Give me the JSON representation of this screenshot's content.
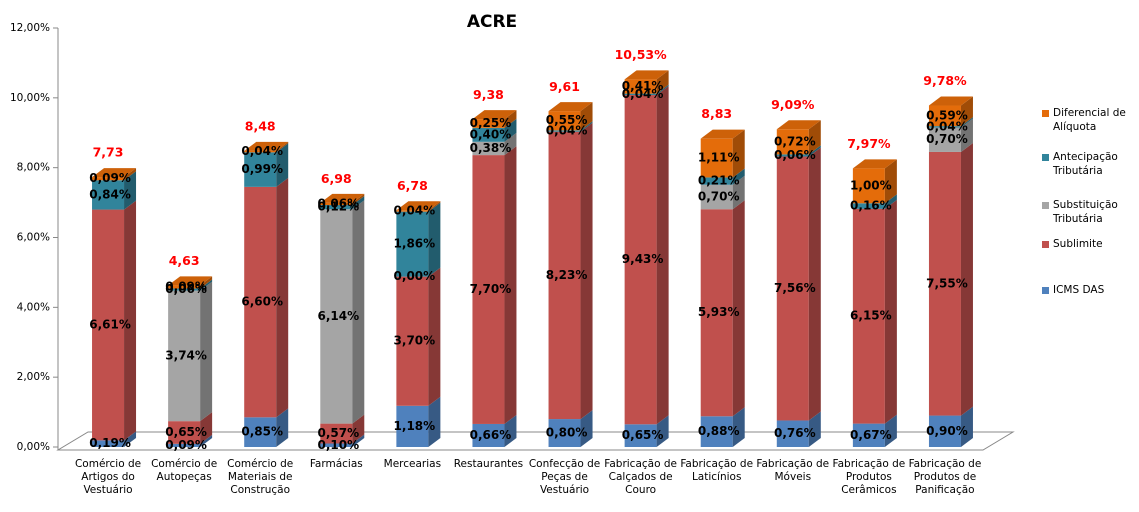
{
  "chart_data": {
    "type": "bar3d_stacked",
    "title": "ACRE",
    "categories": [
      "Comércio de\nArtigos do\nVestuário",
      "Comércio de\nAutopeças",
      "Comércio de\nMateriais de\nConstrução",
      "Farmácias",
      "Mercearias",
      "Restaurantes",
      "Confecção de\nPeças de\nVestuário",
      "Fabricação de\nCalçados de\nCouro",
      "Fabricação de\nLaticínios",
      "Fabricação de\nMóveis",
      "Fabricação de\nProdutos\nCerâmicos",
      "Fabricação de\nProdutos de\nPanificação"
    ],
    "series": [
      {
        "name": "ICMS DAS",
        "color": "#4f81bd",
        "values": [
          0.19,
          0.09,
          0.85,
          0.1,
          1.18,
          0.66,
          0.8,
          0.65,
          0.88,
          0.76,
          0.67,
          0.9
        ],
        "value_labels": [
          "0,19%",
          "0,09%",
          "0,85%",
          "0,10%",
          "1,18%",
          "0,66%",
          "0,80%",
          "0,65%",
          "0,88%",
          "0,76%",
          "0,67%",
          "0,90%"
        ]
      },
      {
        "name": "Sublimite",
        "color": "#c0504d",
        "values": [
          6.61,
          0.65,
          6.6,
          0.57,
          3.7,
          7.7,
          8.23,
          9.43,
          5.93,
          7.56,
          6.15,
          7.55
        ],
        "value_labels": [
          "6,61%",
          "0,65%",
          "6,60%",
          "0,57%",
          "3,70%",
          "7,70%",
          "8,23%",
          "9,43%",
          "5,93%",
          "7,56%",
          "6,15%",
          "7,55%"
        ]
      },
      {
        "name": "Substituição\nTributária",
        "color": "#a5a5a5",
        "values": [
          null,
          3.74,
          null,
          6.14,
          0.0,
          0.38,
          null,
          null,
          0.7,
          null,
          null,
          0.7
        ],
        "value_labels": [
          null,
          "3,74%",
          null,
          "6,14%",
          "0,00%",
          "0,38%",
          null,
          null,
          "0,70%",
          null,
          null,
          "0,70%"
        ]
      },
      {
        "name": "Antecipação\nTributária",
        "color": "#31849b",
        "values": [
          0.84,
          0.06,
          0.99,
          0.12,
          1.86,
          0.4,
          0.04,
          0.04,
          0.21,
          0.06,
          0.16,
          0.04
        ],
        "value_labels": [
          "0,84%",
          "0,06%",
          "0,99%",
          "0,12%",
          "1,86%",
          "0,40%",
          "0,04%",
          "0,04%",
          "0,21%",
          "0,06%",
          "0,16%",
          "0,04%"
        ]
      },
      {
        "name": "Diferencial de\nAlíquota",
        "color": "#e46c0a",
        "values": [
          0.09,
          0.09,
          0.04,
          0.06,
          0.04,
          0.25,
          0.55,
          0.41,
          1.11,
          0.72,
          1.0,
          0.59
        ],
        "value_labels": [
          "0,09%",
          "0,09%",
          "0,04%",
          "0,06%",
          "0,04%",
          "0,25%",
          "0,55%",
          "0,41%",
          "1,11%",
          "0,72%",
          "1,00%",
          "0,59%"
        ]
      }
    ],
    "totals": {
      "color": "#ff0000",
      "values": [
        7.73,
        4.63,
        8.48,
        6.98,
        6.78,
        9.38,
        9.61,
        10.53,
        8.83,
        9.09,
        7.97,
        9.78
      ],
      "value_labels": [
        "7,73",
        "4,63",
        "8,48",
        "6,98",
        "6,78",
        "9,38",
        "9,61",
        "10,53%",
        "8,83",
        "9,09%",
        "7,97%",
        "9,78%"
      ]
    },
    "ylim": [
      0,
      12
    ],
    "yticks": [
      {
        "value": 0,
        "label": "0,00%"
      },
      {
        "value": 2,
        "label": "2,00%"
      },
      {
        "value": 4,
        "label": "4,00%"
      },
      {
        "value": 6,
        "label": "6,00%"
      },
      {
        "value": 8,
        "label": "8,00%"
      },
      {
        "value": 10,
        "label": "10,00%"
      },
      {
        "value": 12,
        "label": "12,00%"
      }
    ],
    "legend": "right"
  }
}
